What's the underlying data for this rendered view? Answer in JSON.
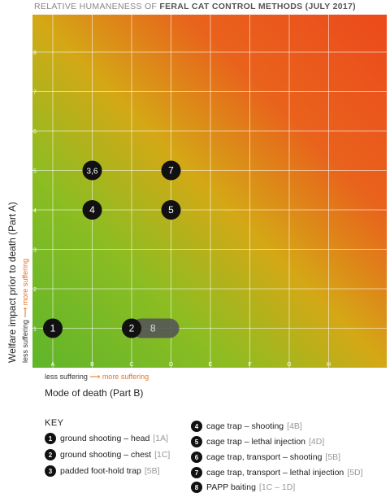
{
  "title_prefix": "RELATIVE HUMANENESS OF ",
  "title_bold": "FERAL CAT CONTROL METHODS (JULY 2017)",
  "axes": {
    "ylabel": "Welfare impact prior to death (Part A)",
    "xlabel": "Mode of death (Part B)",
    "less_suffering": "less suffering",
    "more_suffering": "more suffering"
  },
  "key": {
    "title": "KEY",
    "items": [
      {
        "num": "1",
        "label": "ground shooting – head",
        "code": "[1A]"
      },
      {
        "num": "2",
        "label": "ground shooting – chest",
        "code": "[1C]"
      },
      {
        "num": "3",
        "label": "padded foot-hold trap",
        "code": "[5B]"
      },
      {
        "num": "4",
        "label": "cage trap – shooting",
        "code": "[4B]"
      },
      {
        "num": "5",
        "label": "cage trap – lethal injection",
        "code": "[4D]"
      },
      {
        "num": "6",
        "label": "cage trap, transport – shooting",
        "code": "[5B]"
      },
      {
        "num": "7",
        "label": "cage trap, transport – lethal injection",
        "code": "[5D]"
      },
      {
        "num": "8",
        "label": "PAPP baiting",
        "code": "[1C – 1D]"
      }
    ]
  },
  "chart_data": {
    "type": "scatter",
    "x_categories": [
      "A",
      "B",
      "C",
      "D",
      "E",
      "F",
      "G",
      "H"
    ],
    "y_ticks": [
      "1",
      "2",
      "3",
      "4",
      "5",
      "6",
      "7",
      "8"
    ],
    "points": [
      {
        "label": "1",
        "x": "A",
        "y": 1
      },
      {
        "label": "2",
        "x": "C",
        "y": 1
      },
      {
        "label": "8",
        "x": [
          "C",
          "D"
        ],
        "y": 1
      },
      {
        "label": "3,6",
        "x": "B",
        "y": 5
      },
      {
        "label": "7",
        "x": "D",
        "y": 5
      },
      {
        "label": "4",
        "x": "B",
        "y": 4
      },
      {
        "label": "5",
        "x": "D",
        "y": 4
      }
    ],
    "grid": true,
    "colors": {
      "low": "#6fb82a",
      "mid": "#d4a916",
      "high": "#ec4d1b"
    }
  }
}
